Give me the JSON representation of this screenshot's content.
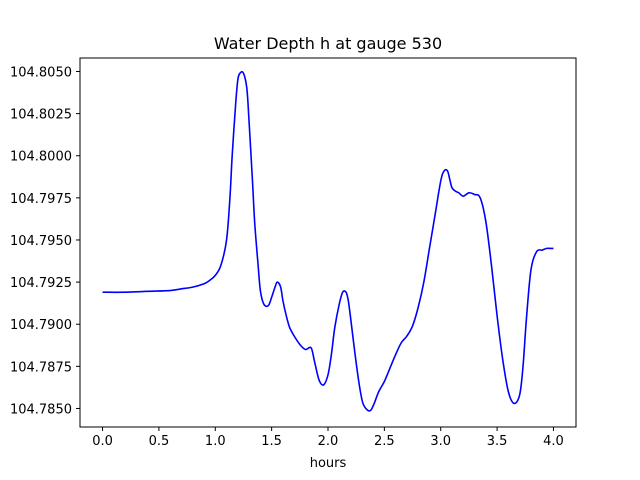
{
  "chart_data": {
    "type": "line",
    "title": "Water Depth h at gauge 530",
    "xlabel": "hours",
    "ylabel": "",
    "xlim": [
      -0.2,
      4.2
    ],
    "ylim": [
      104.7839,
      104.8058
    ],
    "grid": false,
    "legend": "none",
    "x_ticks": [
      0.0,
      0.5,
      1.0,
      1.5,
      2.0,
      2.5,
      3.0,
      3.5,
      4.0
    ],
    "x_tick_labels": [
      "0.0",
      "0.5",
      "1.0",
      "1.5",
      "2.0",
      "2.5",
      "3.0",
      "3.5",
      "4.0"
    ],
    "y_ticks": [
      104.785,
      104.7875,
      104.79,
      104.7925,
      104.795,
      104.7975,
      104.8,
      104.8025,
      104.805
    ],
    "y_tick_labels": [
      "104.7850",
      "104.7875",
      "104.7900",
      "104.7925",
      "104.7950",
      "104.7975",
      "104.8000",
      "104.8025",
      "104.8050"
    ],
    "series": [
      {
        "color": "#0000ff",
        "x": [
          0.0,
          0.2,
          0.4,
          0.6,
          0.7,
          0.8,
          0.9,
          0.95,
          1.0,
          1.05,
          1.1,
          1.13,
          1.15,
          1.18,
          1.2,
          1.22,
          1.25,
          1.28,
          1.3,
          1.33,
          1.35,
          1.38,
          1.4,
          1.43,
          1.47,
          1.5,
          1.53,
          1.55,
          1.58,
          1.6,
          1.63,
          1.66,
          1.7,
          1.75,
          1.8,
          1.85,
          1.88,
          1.92,
          1.96,
          2.0,
          2.03,
          2.06,
          2.1,
          2.13,
          2.16,
          2.18,
          2.2,
          2.22,
          2.25,
          2.28,
          2.31,
          2.35,
          2.38,
          2.41,
          2.45,
          2.5,
          2.55,
          2.6,
          2.65,
          2.7,
          2.75,
          2.8,
          2.85,
          2.9,
          2.95,
          3.0,
          3.03,
          3.06,
          3.08,
          3.1,
          3.13,
          3.16,
          3.2,
          3.25,
          3.3,
          3.35,
          3.4,
          3.45,
          3.5,
          3.55,
          3.6,
          3.65,
          3.7,
          3.73,
          3.76,
          3.8,
          3.85,
          3.9,
          3.94,
          3.97,
          4.0
        ],
        "values": [
          104.7919,
          104.7919,
          104.79195,
          104.792,
          104.7921,
          104.7922,
          104.7924,
          104.7926,
          104.7929,
          104.7935,
          104.795,
          104.7975,
          104.8,
          104.803,
          104.8045,
          104.8049,
          104.8049,
          104.804,
          104.802,
          104.7985,
          104.796,
          104.7935,
          104.792,
          104.7912,
          104.7911,
          104.7916,
          104.7922,
          104.7925,
          104.7922,
          104.7914,
          104.7905,
          104.7898,
          104.7893,
          104.7888,
          104.7885,
          104.7886,
          104.7878,
          104.7867,
          104.7864,
          104.787,
          104.7882,
          104.7898,
          104.7912,
          104.7919,
          104.7919,
          104.7914,
          104.7904,
          104.7893,
          104.7877,
          104.7863,
          104.7853,
          104.7849,
          104.7849,
          104.7853,
          104.786,
          104.7866,
          104.7874,
          104.7882,
          104.7889,
          104.7893,
          104.7899,
          104.791,
          104.7925,
          104.7945,
          104.7965,
          104.7985,
          104.7991,
          104.7991,
          104.7986,
          104.7981,
          104.7979,
          104.7978,
          104.7976,
          104.7978,
          104.7977,
          104.7975,
          104.7961,
          104.7935,
          104.7905,
          104.7879,
          104.786,
          104.7853,
          104.7858,
          104.7875,
          104.7903,
          104.7932,
          104.7943,
          104.7944,
          104.7945,
          104.7945,
          104.7945
        ]
      }
    ]
  }
}
